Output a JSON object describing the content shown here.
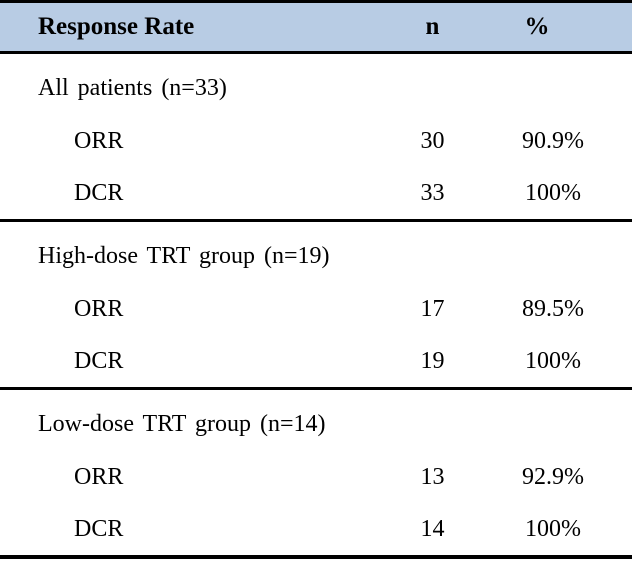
{
  "colors": {
    "header_bg": "#b8cce4",
    "border": "#000000",
    "text": "#000000"
  },
  "table": {
    "header": {
      "col1": "Response Rate",
      "col2": "n",
      "col3": "%"
    },
    "sections": [
      {
        "title": "All patients (n=33)",
        "rows": [
          {
            "label": "ORR",
            "n": "30",
            "pct": "90.9%"
          },
          {
            "label": "DCR",
            "n": "33",
            "pct": "100%"
          }
        ]
      },
      {
        "title": "High-dose TRT group (n=19)",
        "rows": [
          {
            "label": "ORR",
            "n": "17",
            "pct": "89.5%"
          },
          {
            "label": "DCR",
            "n": "19",
            "pct": "100%"
          }
        ]
      },
      {
        "title": "Low-dose TRT group (n=14)",
        "rows": [
          {
            "label": "ORR",
            "n": "13",
            "pct": "92.9%"
          },
          {
            "label": "DCR",
            "n": "14",
            "pct": "100%"
          }
        ]
      }
    ]
  },
  "chart_data": {
    "type": "table",
    "title": "Response Rate",
    "columns": [
      "Response Rate",
      "n",
      "%"
    ],
    "groups": [
      {
        "group": "All patients",
        "group_n": 33,
        "ORR_n": 30,
        "ORR_pct": "90.9%",
        "DCR_n": 33,
        "DCR_pct": "100%"
      },
      {
        "group": "High-dose TRT group",
        "group_n": 19,
        "ORR_n": 17,
        "ORR_pct": "89.5%",
        "DCR_n": 19,
        "DCR_pct": "100%"
      },
      {
        "group": "Low-dose TRT group",
        "group_n": 14,
        "ORR_n": 13,
        "ORR_pct": "92.9%",
        "DCR_n": 14,
        "DCR_pct": "100%"
      }
    ]
  }
}
